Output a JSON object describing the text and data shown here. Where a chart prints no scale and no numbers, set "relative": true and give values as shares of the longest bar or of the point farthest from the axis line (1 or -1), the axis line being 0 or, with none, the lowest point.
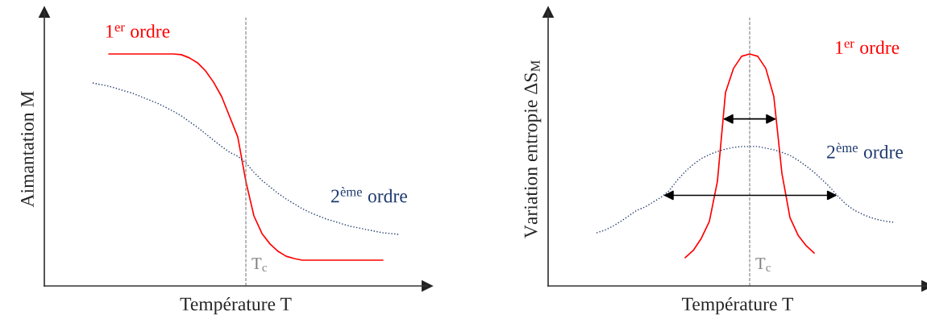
{
  "chart_data": [
    {
      "type": "line",
      "relative": true,
      "legend": false,
      "categories": [
        null,
        null,
        null,
        null,
        null,
        null,
        null,
        null,
        null,
        null,
        null,
        null,
        null,
        null,
        null,
        null,
        null,
        null,
        null,
        null,
        null,
        null,
        null,
        null,
        null,
        null,
        null,
        null,
        null,
        null,
        null,
        null,
        null,
        null,
        null,
        null,
        null,
        null,
        null,
        null,
        null,
        null,
        null,
        null,
        null,
        null,
        null,
        null
      ],
      "xlabel": "Température T",
      "ylabel": "Aimantation M",
      "series": [
        {
          "name": "1$^{er}$ ordre",
          "color": "#ff0000",
          "line_style": "solid",
          "values": [
            null,
            null,
            null,
            null,
            null,
            null,
            null,
            null,
            1,
            1,
            1,
            1,
            1,
            1,
            1,
            1,
            1,
            0.997,
            0.983,
            0.962,
            0.927,
            0.878,
            0.816,
            0.729,
            0.642,
            0.451,
            0.302,
            0.226,
            0.181,
            0.149,
            0.128,
            0.118,
            0.111,
            0.111,
            0.111,
            0.111,
            0.111,
            0.111,
            0.111,
            0.111,
            0.111,
            0.111,
            0.111,
            null,
            null,
            null,
            null,
            null
          ]
        },
        {
          "name": "2$^{ème}$ ordre",
          "color": "#1f3a6e",
          "line_style": "dotted",
          "values": [
            null,
            null,
            null,
            null,
            null,
            null,
            0.875,
            0.868,
            0.861,
            0.851,
            0.84,
            0.83,
            0.816,
            0.802,
            0.788,
            0.771,
            0.753,
            0.733,
            0.708,
            0.684,
            0.656,
            0.628,
            0.601,
            0.576,
            0.559,
            0.531,
            0.49,
            0.455,
            0.427,
            0.399,
            0.375,
            0.354,
            0.333,
            0.316,
            0.302,
            0.288,
            0.278,
            0.267,
            0.257,
            0.25,
            0.243,
            0.236,
            0.229,
            0.226,
            0.222,
            null,
            null,
            null
          ]
        }
      ],
      "annotations": [
        "T$_{c}$"
      ]
    },
    {
      "type": "line",
      "relative": true,
      "legend": false,
      "categories": [
        null,
        null,
        null,
        null,
        null,
        null,
        null,
        null,
        null,
        null,
        null,
        null,
        null,
        null,
        null,
        null,
        null,
        null,
        null,
        null,
        null,
        null,
        null,
        null,
        null,
        null,
        null,
        null,
        null,
        null,
        null,
        null,
        null,
        null,
        null,
        null,
        null,
        null,
        null,
        null,
        null,
        null,
        null,
        null,
        null,
        null,
        null,
        null
      ],
      "xlabel": "Température T",
      "ylabel": "Variation entropie ΔS$_{M}$",
      "series": [
        {
          "name": "1$^{er}$ ordre",
          "color": "#ff0000",
          "line_style": "solid",
          "values": [
            null,
            null,
            null,
            null,
            null,
            null,
            null,
            null,
            null,
            null,
            null,
            null,
            null,
            null,
            null,
            null,
            null,
            0.122,
            0.153,
            0.205,
            0.278,
            0.451,
            0.833,
            0.938,
            0.99,
            1.0,
            0.99,
            0.938,
            0.816,
            0.486,
            0.295,
            0.219,
            0.174,
            0.142,
            null,
            null,
            null,
            null,
            null,
            null,
            null,
            null,
            null,
            null,
            null,
            null,
            null,
            null
          ]
        },
        {
          "name": "2$^{ème}$ ordre",
          "color": "#1f3a6e",
          "line_style": "dotted",
          "values": [
            null,
            null,
            null,
            null,
            null,
            null,
            0.229,
            0.24,
            0.257,
            0.278,
            0.302,
            0.326,
            0.34,
            0.361,
            0.382,
            0.41,
            0.455,
            0.493,
            0.524,
            0.549,
            0.566,
            0.58,
            0.59,
            0.597,
            0.601,
            0.601,
            0.601,
            0.594,
            0.587,
            0.576,
            0.563,
            0.542,
            0.517,
            0.49,
            0.458,
            0.424,
            0.385,
            0.351,
            0.326,
            0.309,
            0.295,
            0.285,
            0.278,
            0.274,
            null,
            null,
            null,
            null
          ]
        }
      ],
      "annotations": [
        "T$_{c}$"
      ]
    }
  ]
}
